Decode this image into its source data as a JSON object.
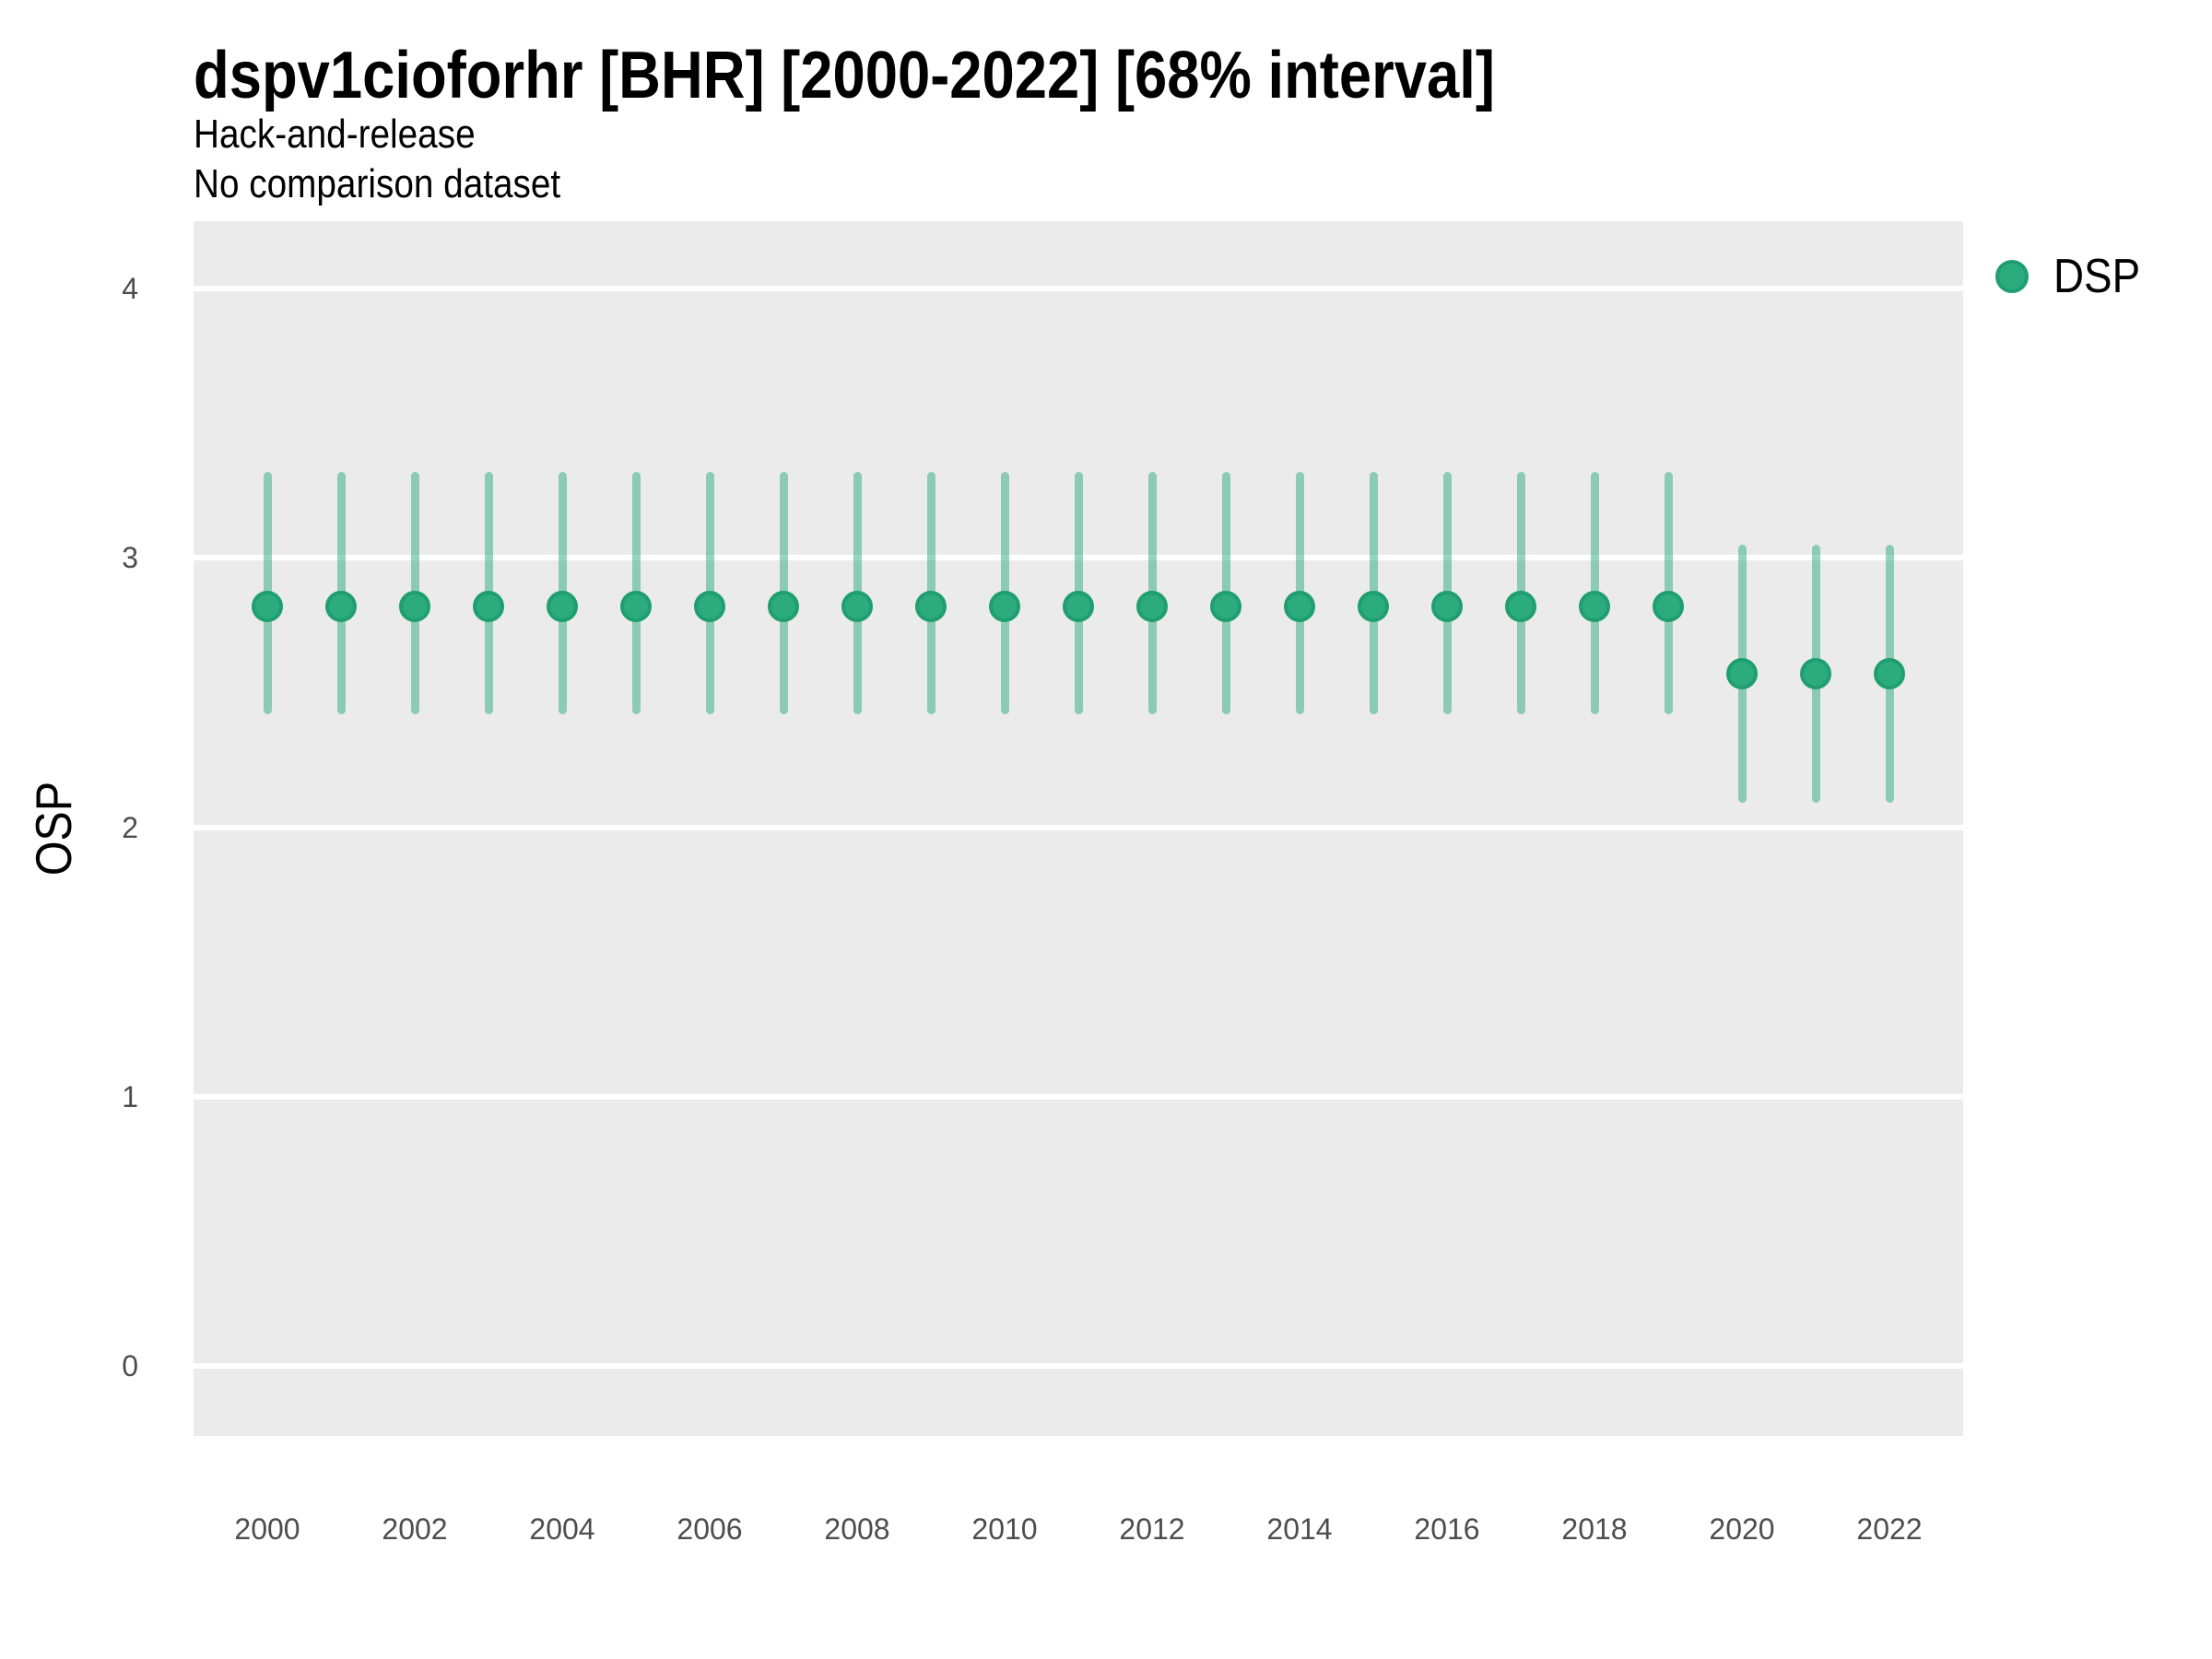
{
  "header": {
    "title": "dspv1cioforhr [BHR] [2000-2022] [68% interval]",
    "subtitle": "Hack-and-release",
    "note": "No comparison dataset"
  },
  "legend": {
    "items": [
      {
        "label": "DSP",
        "color": "#2CAB7F",
        "border": "#1F9E71"
      }
    ],
    "position": "right"
  },
  "colors": {
    "panel_bg": "#EBEBEB",
    "grid": "#FFFFFF",
    "point_fill": "#2CAB7F",
    "point_border": "#1F9E71",
    "interval_band": "rgba(44,171,127,0.5)",
    "tick_text": "#4D4D4D",
    "title_text": "#000000"
  },
  "chart_data": {
    "type": "scatter",
    "variant": "pointrange",
    "title": "dspv1cioforhr [BHR] [2000-2022] [68% interval]",
    "subtitle": "Hack-and-release",
    "note": "No comparison dataset",
    "interval": "68%",
    "xlabel": "",
    "ylabel": "OSP",
    "xlim": [
      1999,
      2023
    ],
    "ylim": [
      -0.26,
      4.25
    ],
    "xticks": [
      2000,
      2002,
      2004,
      2006,
      2008,
      2010,
      2012,
      2014,
      2016,
      2018,
      2020,
      2022
    ],
    "yticks": [
      0,
      1,
      2,
      3,
      4
    ],
    "grid": "horizontal-major-only",
    "legend_position": "right",
    "series": [
      {
        "name": "DSP",
        "color": "#2CAB7F",
        "points": [
          {
            "x": 2000,
            "y": 2.82,
            "lo": 2.42,
            "hi": 3.32
          },
          {
            "x": 2001,
            "y": 2.82,
            "lo": 2.42,
            "hi": 3.32
          },
          {
            "x": 2002,
            "y": 2.82,
            "lo": 2.42,
            "hi": 3.32
          },
          {
            "x": 2003,
            "y": 2.82,
            "lo": 2.42,
            "hi": 3.32
          },
          {
            "x": 2004,
            "y": 2.82,
            "lo": 2.42,
            "hi": 3.32
          },
          {
            "x": 2005,
            "y": 2.82,
            "lo": 2.42,
            "hi": 3.32
          },
          {
            "x": 2006,
            "y": 2.82,
            "lo": 2.42,
            "hi": 3.32
          },
          {
            "x": 2007,
            "y": 2.82,
            "lo": 2.42,
            "hi": 3.32
          },
          {
            "x": 2008,
            "y": 2.82,
            "lo": 2.42,
            "hi": 3.32
          },
          {
            "x": 2009,
            "y": 2.82,
            "lo": 2.42,
            "hi": 3.32
          },
          {
            "x": 2010,
            "y": 2.82,
            "lo": 2.42,
            "hi": 3.32
          },
          {
            "x": 2011,
            "y": 2.82,
            "lo": 2.42,
            "hi": 3.32
          },
          {
            "x": 2012,
            "y": 2.82,
            "lo": 2.42,
            "hi": 3.32
          },
          {
            "x": 2013,
            "y": 2.82,
            "lo": 2.42,
            "hi": 3.32
          },
          {
            "x": 2014,
            "y": 2.82,
            "lo": 2.42,
            "hi": 3.32
          },
          {
            "x": 2015,
            "y": 2.82,
            "lo": 2.42,
            "hi": 3.32
          },
          {
            "x": 2016,
            "y": 2.82,
            "lo": 2.42,
            "hi": 3.32
          },
          {
            "x": 2017,
            "y": 2.82,
            "lo": 2.42,
            "hi": 3.32
          },
          {
            "x": 2018,
            "y": 2.82,
            "lo": 2.42,
            "hi": 3.32
          },
          {
            "x": 2019,
            "y": 2.82,
            "lo": 2.42,
            "hi": 3.32
          },
          {
            "x": 2020,
            "y": 2.57,
            "lo": 2.09,
            "hi": 3.05
          },
          {
            "x": 2021,
            "y": 2.57,
            "lo": 2.09,
            "hi": 3.05
          },
          {
            "x": 2022,
            "y": 2.57,
            "lo": 2.09,
            "hi": 3.05
          }
        ]
      }
    ]
  }
}
